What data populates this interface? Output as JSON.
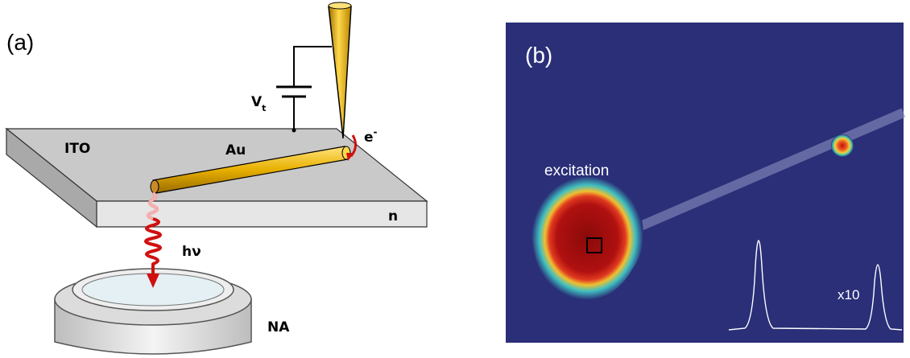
{
  "panel_a": {
    "label": "(a)",
    "voltage": {
      "symbol": "V",
      "subscript": "t"
    },
    "substrate": "ITO",
    "wire": "Au",
    "electron": {
      "symbol": "e",
      "superscript": "-"
    },
    "index": "n",
    "photon": "hν",
    "objective": "NA"
  },
  "panel_b": {
    "label": "(b)",
    "annotation": "excitation",
    "scale": "x10"
  }
}
